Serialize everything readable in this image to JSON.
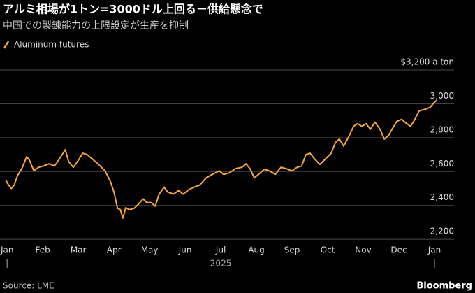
{
  "chart_data": {
    "type": "line",
    "title": "アルミ相場が1トン=3000ドル上回る－供給懸念で",
    "subtitle": "中国での製錬能力の上限設定が生産を抑制",
    "source": "Source: LME",
    "brand": "Bloomberg",
    "year_label": "2025",
    "x": [
      -0.04,
      0.04,
      0.12,
      0.2,
      0.29,
      0.43,
      0.55,
      0.63,
      0.75,
      0.88,
      1.02,
      1.18,
      1.33,
      1.47,
      1.63,
      1.73,
      1.86,
      2.0,
      2.12,
      2.25,
      2.39,
      2.55,
      2.75,
      2.9,
      3.0,
      3.1,
      3.18,
      3.25,
      3.33,
      3.43,
      3.57,
      3.69,
      3.82,
      3.92,
      4.04,
      4.16,
      4.27,
      4.41,
      4.51,
      4.67,
      4.82,
      4.94,
      5.1,
      5.25,
      5.41,
      5.59,
      5.76,
      5.96,
      6.08,
      6.24,
      6.41,
      6.59,
      6.71,
      6.82,
      6.94,
      7.06,
      7.22,
      7.37,
      7.53,
      7.69,
      7.84,
      8.0,
      8.14,
      8.27,
      8.39,
      8.51,
      8.63,
      8.78,
      8.94,
      9.1,
      9.22,
      9.33,
      9.45,
      9.61,
      9.73,
      9.84,
      9.96,
      10.08,
      10.2,
      10.33,
      10.47,
      10.59,
      10.71,
      10.82,
      10.94,
      11.08,
      11.22,
      11.33,
      11.45,
      11.57,
      11.73,
      11.88,
      11.96,
      12.06
    ],
    "series": [
      {
        "name": "Aluminum futures",
        "color": "#f7a541",
        "values": [
          2550,
          2521,
          2500,
          2521,
          2575,
          2625,
          2688,
          2667,
          2604,
          2625,
          2633,
          2646,
          2633,
          2675,
          2729,
          2658,
          2625,
          2667,
          2708,
          2700,
          2675,
          2646,
          2604,
          2542,
          2479,
          2383,
          2375,
          2325,
          2387,
          2375,
          2383,
          2408,
          2438,
          2417,
          2417,
          2396,
          2467,
          2508,
          2479,
          2467,
          2488,
          2467,
          2492,
          2508,
          2521,
          2563,
          2583,
          2604,
          2583,
          2592,
          2617,
          2625,
          2646,
          2617,
          2563,
          2583,
          2613,
          2604,
          2583,
          2625,
          2617,
          2604,
          2625,
          2633,
          2700,
          2708,
          2675,
          2642,
          2675,
          2708,
          2771,
          2792,
          2750,
          2813,
          2867,
          2883,
          2867,
          2883,
          2850,
          2892,
          2850,
          2792,
          2813,
          2854,
          2896,
          2908,
          2883,
          2867,
          2908,
          2958,
          2967,
          2979,
          3000,
          3021
        ]
      }
    ],
    "xlim": [
      -0.2,
      12.55
    ],
    "xticks": [
      {
        "value": 0,
        "label": "Jan"
      },
      {
        "value": 1,
        "label": "Feb"
      },
      {
        "value": 2,
        "label": "Mar"
      },
      {
        "value": 3,
        "label": "Apr"
      },
      {
        "value": 4,
        "label": "May"
      },
      {
        "value": 5,
        "label": "Jun"
      },
      {
        "value": 6,
        "label": "Jul"
      },
      {
        "value": 7,
        "label": "Aug"
      },
      {
        "value": 8,
        "label": "Sep"
      },
      {
        "value": 9,
        "label": "Oct"
      },
      {
        "value": 10,
        "label": "Nov"
      },
      {
        "value": 11,
        "label": "Dec"
      },
      {
        "value": 12,
        "label": "Jan"
      }
    ],
    "ylim": [
      2180,
      3200
    ],
    "yticks": [
      {
        "value": 2200,
        "label": "2,200"
      },
      {
        "value": 2400,
        "label": "2,400"
      },
      {
        "value": 2600,
        "label": "2,600"
      },
      {
        "value": 2800,
        "label": "2,800"
      },
      {
        "value": 3000,
        "label": "3,000"
      },
      {
        "value": 3200,
        "label": "$3,200 a ton"
      }
    ],
    "grid": true
  }
}
